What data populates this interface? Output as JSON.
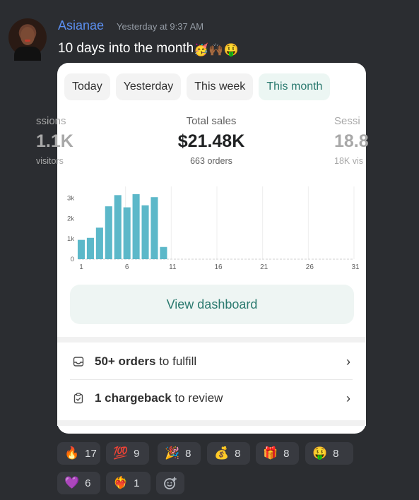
{
  "message": {
    "username": "Asianae",
    "timestamp": "Yesterday at 9:37 AM",
    "text": "10 days into the month",
    "emojis": [
      "🥳",
      "🙌🏾",
      "🤑"
    ]
  },
  "card": {
    "tabs": [
      {
        "label": "Today",
        "active": false
      },
      {
        "label": "Yesterday",
        "active": false
      },
      {
        "label": "This week",
        "active": false
      },
      {
        "label": "This month",
        "active": true
      }
    ],
    "metric_left": {
      "label": "ssions",
      "value": "1.1K",
      "sub": "visitors"
    },
    "metric_center": {
      "label": "Total sales",
      "value": "$21.48K",
      "sub": "663 orders"
    },
    "metric_right": {
      "label": "Sessi",
      "value": "18.8",
      "sub": "18K vis"
    },
    "view_button": "View dashboard",
    "tasks": [
      {
        "bold": "50+ orders",
        "rest": " to fulfill",
        "icon": "inbox-icon"
      },
      {
        "bold": "1 chargeback",
        "rest": " to review",
        "icon": "clipboard-check-icon"
      }
    ]
  },
  "chart_data": {
    "type": "bar",
    "x": [
      1,
      2,
      3,
      4,
      5,
      6,
      7,
      8,
      9,
      10,
      11,
      12,
      13,
      14,
      15,
      16,
      17,
      18,
      19,
      20,
      21,
      22,
      23,
      24,
      25,
      26,
      27,
      28,
      29,
      30,
      31
    ],
    "values": [
      950,
      1050,
      1550,
      2600,
      3150,
      2550,
      3200,
      2650,
      3050,
      600,
      0,
      0,
      0,
      0,
      0,
      0,
      0,
      0,
      0,
      0,
      0,
      0,
      0,
      0,
      0,
      0,
      0,
      0,
      0,
      0,
      0
    ],
    "x_tick_labels": [
      "1",
      "6",
      "11",
      "16",
      "21",
      "26",
      "31"
    ],
    "y_tick_labels": [
      "0",
      "1k",
      "2k",
      "3k"
    ],
    "ylim": [
      0,
      3300
    ],
    "bar_color": "#5cb8c9",
    "grid": true
  },
  "reactions": [
    {
      "emoji": "🔥",
      "count": "17"
    },
    {
      "emoji": "💯",
      "count": "9"
    },
    {
      "emoji": "🎉",
      "count": "8"
    },
    {
      "emoji": "💰",
      "count": "8"
    },
    {
      "emoji": "🎁",
      "count": "8"
    },
    {
      "emoji": "🤑",
      "count": "8"
    },
    {
      "emoji": "💜",
      "count": "6"
    },
    {
      "emoji": "❤️‍🔥",
      "count": "1"
    }
  ]
}
